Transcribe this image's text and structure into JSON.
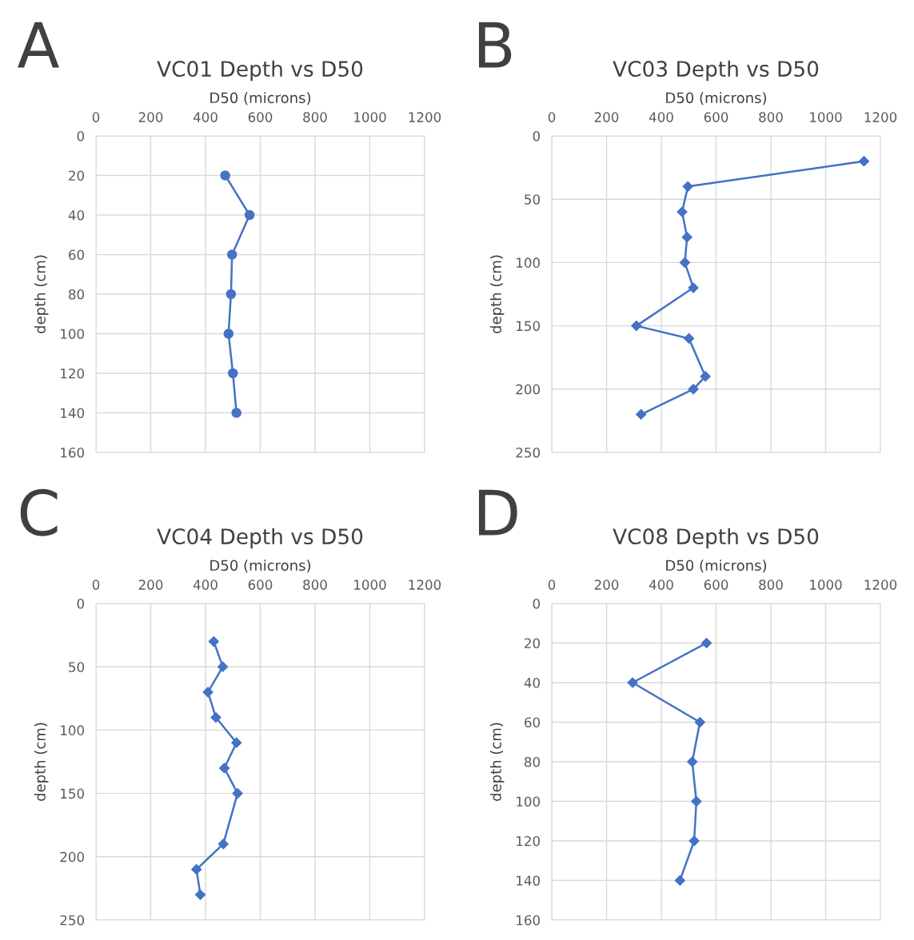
{
  "chart_data": [
    {
      "type": "line",
      "title": "VC01 Depth vs D50",
      "xlabel": "D50 (microns)",
      "ylabel": "depth (cm)",
      "annotations": [
        "A"
      ],
      "marker": "circle",
      "grid": true,
      "xlim": [
        0,
        1200
      ],
      "xticks": [
        0,
        200,
        400,
        600,
        800,
        1000,
        1200
      ],
      "ylim": [
        160,
        0
      ],
      "yticks": [
        0,
        20,
        40,
        60,
        80,
        100,
        120,
        140,
        160
      ],
      "series": [
        {
          "color": "#4472c4",
          "x": [
            472,
            561,
            497,
            493,
            484,
            500,
            513
          ],
          "values": [
            20,
            40,
            60,
            80,
            100,
            120,
            140
          ]
        }
      ]
    },
    {
      "type": "line",
      "title": "VC03 Depth vs D50",
      "xlabel": "D50 (microns)",
      "ylabel": "depth (cm)",
      "annotations": [
        "B"
      ],
      "marker": "diamond",
      "grid": true,
      "xlim": [
        0,
        1200
      ],
      "xticks": [
        0,
        200,
        400,
        600,
        800,
        1000,
        1200
      ],
      "ylim": [
        250,
        0
      ],
      "yticks": [
        0,
        50,
        100,
        150,
        200,
        250
      ],
      "series": [
        {
          "color": "#4472c4",
          "x": [
            1140,
            497,
            476,
            494,
            486,
            517,
            309,
            501,
            561,
            517,
            326
          ],
          "values": [
            20,
            40,
            60,
            80,
            100,
            120,
            150,
            160,
            190,
            200,
            220
          ]
        }
      ]
    },
    {
      "type": "line",
      "title": "VC04 Depth vs D50",
      "xlabel": "D50 (microns)",
      "ylabel": "depth (cm)",
      "annotations": [
        "C"
      ],
      "marker": "diamond",
      "grid": true,
      "xlim": [
        0,
        1200
      ],
      "xticks": [
        0,
        200,
        400,
        600,
        800,
        1000,
        1200
      ],
      "ylim": [
        250,
        0
      ],
      "yticks": [
        0,
        50,
        100,
        150,
        200,
        250
      ],
      "series": [
        {
          "color": "#4472c4",
          "x": [
            430,
            463,
            409,
            438,
            513,
            469,
            517,
            465,
            367,
            381
          ],
          "values": [
            30,
            50,
            70,
            90,
            110,
            130,
            150,
            190,
            210,
            230
          ]
        }
      ]
    },
    {
      "type": "line",
      "title": "VC08 Depth vs D50",
      "xlabel": "D50 (microns)",
      "ylabel": "depth (cm)",
      "annotations": [
        "D"
      ],
      "marker": "diamond",
      "grid": true,
      "xlim": [
        0,
        1200
      ],
      "xticks": [
        0,
        200,
        400,
        600,
        800,
        1000,
        1200
      ],
      "ylim": [
        160,
        0
      ],
      "yticks": [
        0,
        20,
        40,
        60,
        80,
        100,
        120,
        140,
        160
      ],
      "series": [
        {
          "color": "#4472c4",
          "x": [
            565,
            295,
            541,
            513,
            528,
            520,
            468
          ],
          "values": [
            20,
            40,
            60,
            80,
            100,
            120,
            140
          ]
        }
      ]
    }
  ]
}
